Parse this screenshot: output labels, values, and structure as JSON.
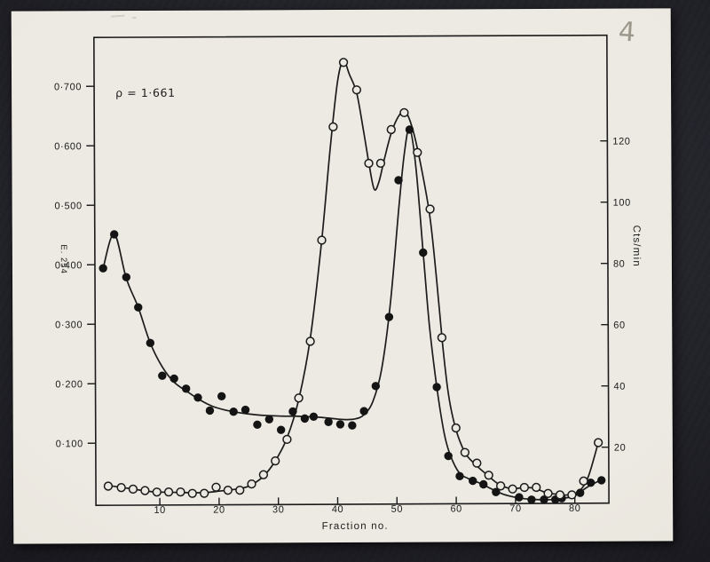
{
  "photo": {
    "page_number": "4"
  },
  "chart": {
    "annotation": "ρ = 1·661",
    "x_axis": {
      "label": "Fraction no.",
      "ticks": [
        "10",
        "20",
        "30",
        "40",
        "50",
        "60",
        "70",
        "80"
      ],
      "tick_values": [
        10,
        20,
        30,
        40,
        50,
        60,
        70,
        80
      ]
    },
    "y_left_axis": {
      "label": "E. 254",
      "ticks": [
        "0·700",
        "0·600",
        "0·500",
        "0·400",
        "0·300",
        "0·200",
        "0·100"
      ],
      "tick_values": [
        0.7,
        0.6,
        0.5,
        0.4,
        0.3,
        0.2,
        0.1
      ]
    },
    "y_right_axis": {
      "label": "Cts/min",
      "ticks": [
        "120",
        "100",
        "80",
        "60",
        "40",
        "20"
      ],
      "tick_values": [
        120,
        100,
        80,
        60,
        40,
        20
      ]
    }
  },
  "chart_data": {
    "type": "line",
    "title": "",
    "xlabel": "Fraction no.",
    "ylabel_left": "E. 254",
    "ylabel_right": "Cts/min",
    "annotation": "ρ = 1·661",
    "x_range": [
      0,
      86
    ],
    "y_left_range": [
      0,
      0.78
    ],
    "y_right_range": [
      0,
      153
    ],
    "grid": false,
    "legend": "none",
    "series": [
      {
        "name": "filled-circles-E254",
        "marker": "filled-circle",
        "axis": "left",
        "points": [
          [
            0.6,
            0.394
          ],
          [
            2.5,
            0.451
          ],
          [
            4.5,
            0.379
          ],
          [
            6.5,
            0.328
          ],
          [
            8.5,
            0.268
          ],
          [
            10.5,
            0.213
          ],
          [
            12.5,
            0.208
          ],
          [
            14.5,
            0.191
          ],
          [
            16.5,
            0.176
          ],
          [
            18.5,
            0.154
          ],
          [
            20.5,
            0.178
          ],
          [
            22.5,
            0.152
          ],
          [
            24.5,
            0.155
          ],
          [
            26.5,
            0.13
          ],
          [
            28.5,
            0.139
          ],
          [
            30.5,
            0.121
          ],
          [
            32.5,
            0.152
          ],
          [
            34.5,
            0.14
          ],
          [
            36,
            0.143
          ],
          [
            38.5,
            0.134
          ],
          [
            40.5,
            0.13
          ],
          [
            42.5,
            0.128
          ],
          [
            44.5,
            0.152
          ],
          [
            46.5,
            0.194
          ],
          [
            48.8,
            0.31
          ],
          [
            50.5,
            0.54
          ],
          [
            52.4,
            0.625
          ],
          [
            54.6,
            0.418
          ],
          [
            56.8,
            0.192
          ],
          [
            58.7,
            0.076
          ],
          [
            60.6,
            0.042
          ],
          [
            62.8,
            0.034
          ],
          [
            64.6,
            0.028
          ],
          [
            66.7,
            0.015
          ],
          [
            70.6,
            0.006
          ],
          [
            72.7,
            0.002
          ],
          [
            74.8,
            0.002
          ],
          [
            76.7,
            0.002
          ],
          [
            77.8,
            0.004
          ],
          [
            80.9,
            0.013
          ],
          [
            82.7,
            0.03
          ],
          [
            84.5,
            0.034
          ]
        ],
        "curve": [
          [
            0.6,
            0.394
          ],
          [
            2.5,
            0.452
          ],
          [
            4.5,
            0.377
          ],
          [
            6.5,
            0.328
          ],
          [
            8.5,
            0.268
          ],
          [
            10.5,
            0.228
          ],
          [
            12.5,
            0.202
          ],
          [
            15,
            0.184
          ],
          [
            17,
            0.171
          ],
          [
            19,
            0.161
          ],
          [
            21,
            0.155
          ],
          [
            23,
            0.151
          ],
          [
            25,
            0.148
          ],
          [
            27,
            0.146
          ],
          [
            29,
            0.145
          ],
          [
            31,
            0.144
          ],
          [
            33,
            0.144
          ],
          [
            35,
            0.143
          ],
          [
            37,
            0.142
          ],
          [
            39,
            0.14
          ],
          [
            41,
            0.138
          ],
          [
            43,
            0.139
          ],
          [
            44.5,
            0.146
          ],
          [
            46,
            0.168
          ],
          [
            47.5,
            0.222
          ],
          [
            49,
            0.33
          ],
          [
            50.5,
            0.49
          ],
          [
            51.5,
            0.585
          ],
          [
            52.4,
            0.627
          ],
          [
            53.4,
            0.565
          ],
          [
            54.6,
            0.418
          ],
          [
            55.6,
            0.295
          ],
          [
            56.8,
            0.192
          ],
          [
            58,
            0.115
          ],
          [
            59,
            0.078
          ],
          [
            60.5,
            0.048
          ],
          [
            62,
            0.038
          ],
          [
            64,
            0.03
          ],
          [
            66,
            0.02
          ],
          [
            68,
            0.011
          ],
          [
            70,
            0.006
          ],
          [
            72,
            0.003
          ],
          [
            74,
            0.002
          ],
          [
            76,
            0.002
          ],
          [
            78,
            0.004
          ],
          [
            80,
            0.008
          ],
          [
            82,
            0.022
          ],
          [
            84.5,
            0.035
          ]
        ]
      },
      {
        "name": "open-circles-cts-min",
        "marker": "open-circle",
        "axis": "right",
        "points": [
          [
            1.3,
            8
          ],
          [
            3.5,
            7.5
          ],
          [
            5.5,
            7
          ],
          [
            7.5,
            6.5
          ],
          [
            9.5,
            6
          ],
          [
            11.5,
            6
          ],
          [
            13.5,
            6
          ],
          [
            15.5,
            5.5
          ],
          [
            17.5,
            5.5
          ],
          [
            19.5,
            7.5
          ],
          [
            21.5,
            6.5
          ],
          [
            23.5,
            6.5
          ],
          [
            25.5,
            8.5
          ],
          [
            27.5,
            11.5
          ],
          [
            29.5,
            16
          ],
          [
            31.5,
            23
          ],
          [
            33.5,
            36.5
          ],
          [
            35.5,
            55
          ],
          [
            37.5,
            88
          ],
          [
            39.5,
            125
          ],
          [
            41.3,
            146
          ],
          [
            43.5,
            137
          ],
          [
            45.5,
            113
          ],
          [
            47.5,
            113
          ],
          [
            49.3,
            124
          ],
          [
            51.5,
            129.5
          ],
          [
            53.7,
            116.5
          ],
          [
            55.8,
            98
          ],
          [
            57.7,
            56
          ],
          [
            60,
            26.5
          ],
          [
            61.5,
            18.5
          ],
          [
            63.5,
            15
          ],
          [
            65.5,
            11
          ],
          [
            67.5,
            7.5
          ],
          [
            69.5,
            6.5
          ],
          [
            71.5,
            7
          ],
          [
            73.5,
            7
          ],
          [
            75.5,
            5
          ],
          [
            77.5,
            4.5
          ],
          [
            79.5,
            4.5
          ],
          [
            81.5,
            9
          ],
          [
            84,
            21.5
          ]
        ],
        "curve": [
          [
            1.3,
            8.2
          ],
          [
            3.5,
            7.6
          ],
          [
            5.5,
            7
          ],
          [
            7.5,
            6.4
          ],
          [
            9.5,
            6
          ],
          [
            12,
            5.9
          ],
          [
            14,
            5.8
          ],
          [
            16,
            5.7
          ],
          [
            18,
            5.8
          ],
          [
            20,
            6.2
          ],
          [
            22,
            6.6
          ],
          [
            24,
            7.2
          ],
          [
            25.5,
            8.2
          ],
          [
            27.5,
            11
          ],
          [
            29.5,
            16
          ],
          [
            31.5,
            23.5
          ],
          [
            33.5,
            36
          ],
          [
            35.5,
            56
          ],
          [
            37.5,
            88
          ],
          [
            39,
            118
          ],
          [
            40.3,
            140
          ],
          [
            41.3,
            146.5
          ],
          [
            42.3,
            142
          ],
          [
            43.5,
            136
          ],
          [
            44.6,
            124
          ],
          [
            45.6,
            112
          ],
          [
            46.4,
            104.5
          ],
          [
            47.2,
            107
          ],
          [
            48.2,
            115
          ],
          [
            49.5,
            124
          ],
          [
            51,
            129.5
          ],
          [
            52,
            129
          ],
          [
            53.2,
            122
          ],
          [
            54.6,
            109
          ],
          [
            55.8,
            95
          ],
          [
            56.8,
            76
          ],
          [
            57.8,
            54
          ],
          [
            58.8,
            37
          ],
          [
            60,
            26
          ],
          [
            61.5,
            18.5
          ],
          [
            63,
            15
          ],
          [
            65,
            11.5
          ],
          [
            67,
            8.3
          ],
          [
            69,
            6.7
          ],
          [
            71,
            6.8
          ],
          [
            73,
            6.8
          ],
          [
            75,
            5.4
          ],
          [
            77,
            4.7
          ],
          [
            79,
            4.5
          ],
          [
            80.8,
            5.8
          ],
          [
            82.3,
            10.5
          ],
          [
            84,
            21.5
          ]
        ]
      }
    ]
  }
}
